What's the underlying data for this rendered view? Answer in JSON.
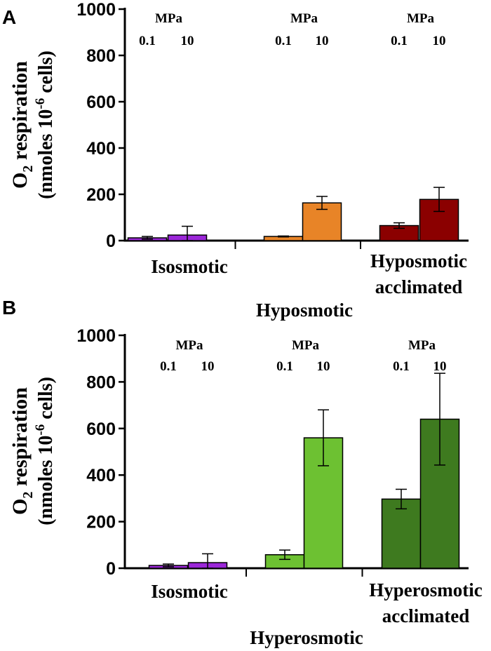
{
  "chart_data": [
    {
      "type": "bar",
      "panel_label": "A",
      "ylabel_line1_main": "O",
      "ylabel_line1_sub": "2",
      "ylabel_line1_rest": " respiration",
      "ylabel_line2_pre": "(nmoles 10",
      "ylabel_line2_sup": "-6",
      "ylabel_line2_post": " cells)",
      "ylim": [
        0,
        1000
      ],
      "yticks": [
        "0",
        "200",
        "400",
        "600",
        "800",
        "1000"
      ],
      "pressure_unit": "MPa",
      "pressure_levels": [
        "0.1",
        "10"
      ],
      "groups": [
        {
          "name": "Isosmotic",
          "label_lines": [
            "Isosmotic"
          ],
          "color": "#9b27d8",
          "values": [
            12,
            24
          ],
          "errors": [
            6,
            38
          ]
        },
        {
          "name": "Hyposmotic",
          "label_lines": [
            "Hyposmotic"
          ],
          "color": "#e88427",
          "values": [
            18,
            163
          ],
          "errors": [
            2,
            28
          ]
        },
        {
          "name": "Hyposmotic acclimated",
          "label_lines": [
            "Hyposmotic",
            "acclimated"
          ],
          "color": "#8b0000",
          "values": [
            65,
            178
          ],
          "errors": [
            12,
            52
          ]
        }
      ]
    },
    {
      "type": "bar",
      "panel_label": "B",
      "ylabel_line1_main": "O",
      "ylabel_line1_sub": "2",
      "ylabel_line1_rest": " respiration",
      "ylabel_line2_pre": "(nmoles 10",
      "ylabel_line2_sup": "-6",
      "ylabel_line2_post": " cells)",
      "ylim": [
        0,
        1000
      ],
      "yticks": [
        "0",
        "200",
        "400",
        "600",
        "800",
        "1000"
      ],
      "pressure_unit": "MPa",
      "pressure_levels": [
        "0.1",
        "10"
      ],
      "groups": [
        {
          "name": "Isosmotic",
          "label_lines": [
            "Isosmotic"
          ],
          "color": "#9b27d8",
          "values": [
            12,
            24
          ],
          "errors": [
            6,
            38
          ]
        },
        {
          "name": "Hyperosmotic",
          "label_lines": [
            "Hyperosmotic"
          ],
          "color": "#6dc132",
          "values": [
            58,
            560
          ],
          "errors": [
            20,
            120
          ]
        },
        {
          "name": "Hyperosmotic acclimated",
          "label_lines": [
            "Hyperosmotic",
            "acclimated"
          ],
          "color": "#3e7a1f",
          "values": [
            297,
            640
          ],
          "errors": [
            42,
            197
          ]
        }
      ]
    }
  ]
}
